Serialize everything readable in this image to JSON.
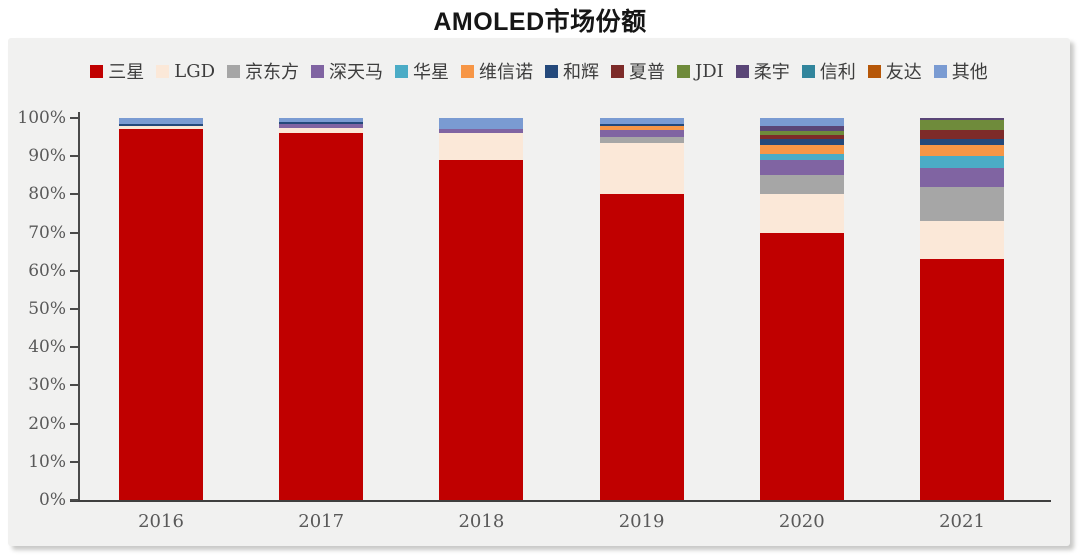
{
  "title": "AMOLED市场份额",
  "colors": {
    "page_background": "#ffffff",
    "panel_background": "#f1f1f0",
    "axis_line": "#3f3f3f",
    "axis_text": "#595959",
    "legend_text": "#3d3d3d",
    "title_text": "#161616"
  },
  "chart_data": {
    "type": "bar",
    "stacked": true,
    "title": "AMOLED市场份额",
    "xlabel": "",
    "ylabel": "",
    "ylim": [
      0,
      100
    ],
    "grid": false,
    "legend_position": "top",
    "categories": [
      "2016",
      "2017",
      "2018",
      "2019",
      "2020",
      "2021"
    ],
    "ytick_labels": [
      "0%",
      "10%",
      "20%",
      "30%",
      "40%",
      "50%",
      "60%",
      "70%",
      "80%",
      "90%",
      "100%"
    ],
    "unit": "%",
    "series": [
      {
        "name": "三星",
        "color": "#C00000",
        "values": [
          97,
          96,
          89,
          80,
          70,
          63
        ]
      },
      {
        "name": "LGD",
        "color": "#FBE8D8",
        "values": [
          1,
          1.5,
          7,
          13.5,
          10,
          10
        ]
      },
      {
        "name": "京东方",
        "color": "#A6A6A6",
        "values": [
          0,
          0,
          0,
          1.5,
          5,
          9
        ]
      },
      {
        "name": "深天马",
        "color": "#8064A2",
        "values": [
          0,
          1,
          1,
          2,
          4,
          5
        ]
      },
      {
        "name": "华星",
        "color": "#4BACC6",
        "values": [
          0,
          0,
          0,
          0,
          1.5,
          3
        ]
      },
      {
        "name": "维信诺",
        "color": "#F79646",
        "values": [
          0,
          0,
          0,
          1,
          2.5,
          3
        ]
      },
      {
        "name": "和辉",
        "color": "#24497B",
        "values": [
          0.5,
          0.5,
          0,
          0.5,
          1.5,
          1.5
        ]
      },
      {
        "name": "夏普",
        "color": "#7D2B29",
        "values": [
          0,
          0,
          0,
          0,
          1,
          2.5
        ]
      },
      {
        "name": "JDI",
        "color": "#6F8B3B",
        "values": [
          0,
          0,
          0,
          0,
          1,
          2.5
        ]
      },
      {
        "name": "柔宇",
        "color": "#5A4677",
        "values": [
          0,
          0,
          0,
          0,
          1.5,
          0.5
        ]
      },
      {
        "name": "信利",
        "color": "#31859C",
        "values": [
          0,
          0,
          0,
          0,
          0,
          0
        ]
      },
      {
        "name": "友达",
        "color": "#B65708",
        "values": [
          0,
          0,
          0,
          0,
          0,
          0
        ]
      },
      {
        "name": "其他",
        "color": "#7A9BD2",
        "values": [
          1.5,
          1,
          3,
          1.5,
          2,
          0
        ]
      }
    ]
  }
}
